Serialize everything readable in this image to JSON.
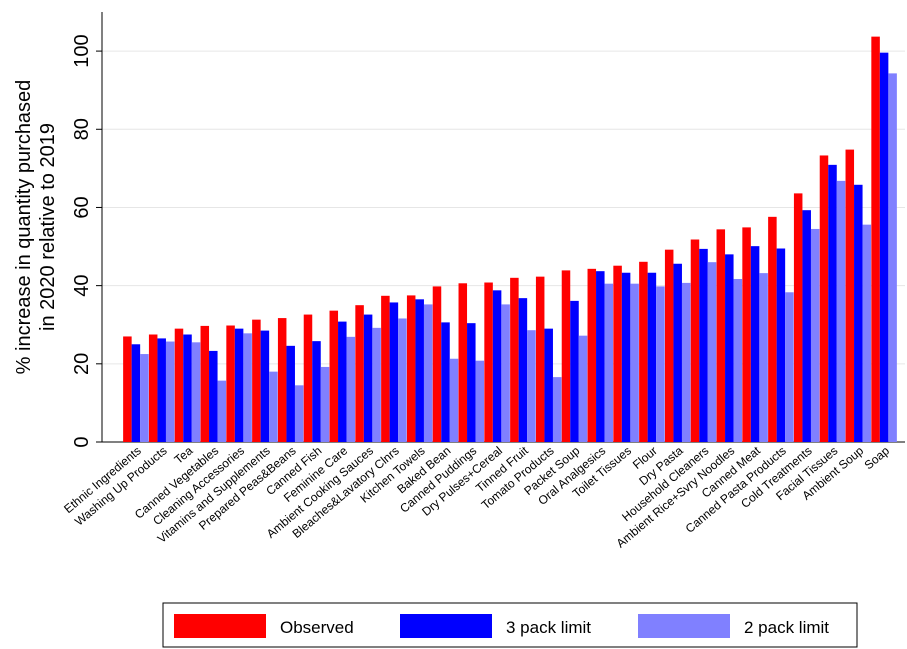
{
  "chart_data": {
    "type": "bar",
    "y_label": [
      "% increase in quantity purchased",
      "in 2020 relative to 2019"
    ],
    "categories": [
      "Ethnic Ingredients",
      "Washing Up Products",
      "Tea",
      "Canned Vegetables",
      "Cleaning Accessories",
      "Vitamins and Supplements",
      "Prepared Peas&Beans",
      "Canned Fish",
      "Feminine Care",
      "Ambient Cooking Sauces",
      "Bleaches&Lavatory Clnrs",
      "Kitchen Towels",
      "Baked Bean",
      "Canned Puddings",
      "Dry Pulses+Cereal",
      "Tinned Fruit",
      "Tomato Products",
      "Packet Soup",
      "Oral Analgesics",
      "Toilet Tissues",
      "Flour",
      "Dry Pasta",
      "Household Cleaners",
      "Ambient Rice+Svry Noodles",
      "Canned Meat",
      "Canned Pasta Products",
      "Cold Treatments",
      "Facial Tissues",
      "Ambient Soup",
      "Soap"
    ],
    "series": [
      {
        "name": "Observed",
        "color": "#ff0000",
        "values": [
          27,
          27.5,
          29,
          29.7,
          29.8,
          31.3,
          31.7,
          32.6,
          33.6,
          35,
          37.4,
          37.5,
          39.8,
          40.6,
          40.8,
          42,
          42.3,
          43.9,
          44.3,
          45.1,
          46.1,
          49.2,
          51.8,
          54.4,
          54.9,
          57.6,
          63.6,
          73.3,
          74.8,
          103.7
        ]
      },
      {
        "name": "3 pack limit",
        "color": "#0000ff",
        "values": [
          25,
          26.5,
          27.5,
          23.3,
          29,
          28.5,
          24.6,
          25.8,
          30.8,
          32.6,
          35.7,
          36.5,
          30.6,
          30.4,
          38.8,
          36.8,
          29,
          36.1,
          43.7,
          43.3,
          43.3,
          45.6,
          49.4,
          48,
          50.1,
          49.5,
          59.3,
          70.9,
          65.8,
          99.6
        ]
      },
      {
        "name": "2 pack limit",
        "color": "#8080ff",
        "values": [
          22.5,
          25.7,
          25.5,
          15.7,
          27.8,
          18,
          14.5,
          19.2,
          26.9,
          29.2,
          31.6,
          35.2,
          21.3,
          20.8,
          35.2,
          28.6,
          16.6,
          27.2,
          40.5,
          40.5,
          39.8,
          40.7,
          46,
          41.7,
          43.2,
          38.3,
          54.5,
          66.8,
          55.6,
          94.3
        ]
      }
    ],
    "ylim": [
      0,
      110
    ],
    "yticks": [
      0,
      20,
      40,
      60,
      80,
      100
    ],
    "grid": true
  }
}
